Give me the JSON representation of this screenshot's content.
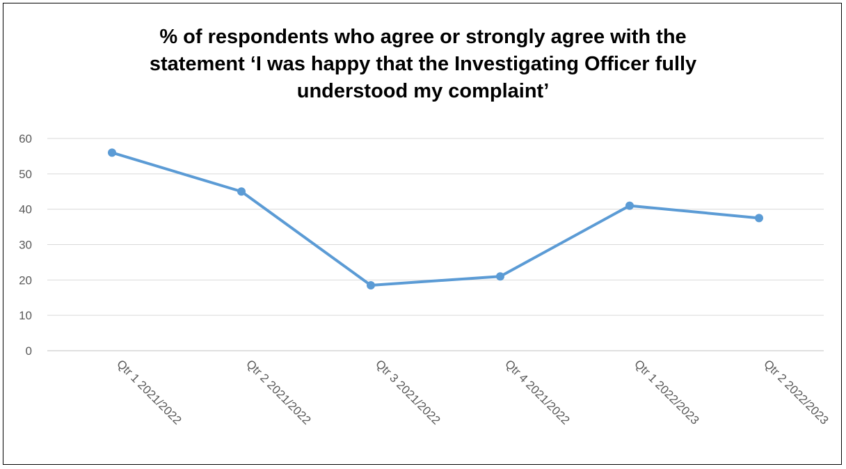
{
  "chart_data": {
    "type": "line",
    "title_lines": [
      "% of respondents who agree or strongly agree with the",
      "statement ‘I was happy that the Investigating Officer fully",
      "understood my complaint’"
    ],
    "categories": [
      "Qtr 1 2021/2022",
      "Qtr 2 2021/2022",
      "Qtr 3 2021/2022",
      "Qtr 4 2021/2022",
      "Qtr 1 2022/2023",
      "Qtr 2 2022/2023"
    ],
    "series": [
      {
        "values": [
          56,
          45,
          18.5,
          21,
          41,
          37.5
        ],
        "color": "#5b9bd5"
      }
    ],
    "ylim": [
      0,
      60
    ],
    "yticks": [
      0,
      10,
      20,
      30,
      40,
      50,
      60
    ],
    "grid": true,
    "legend": "none"
  }
}
